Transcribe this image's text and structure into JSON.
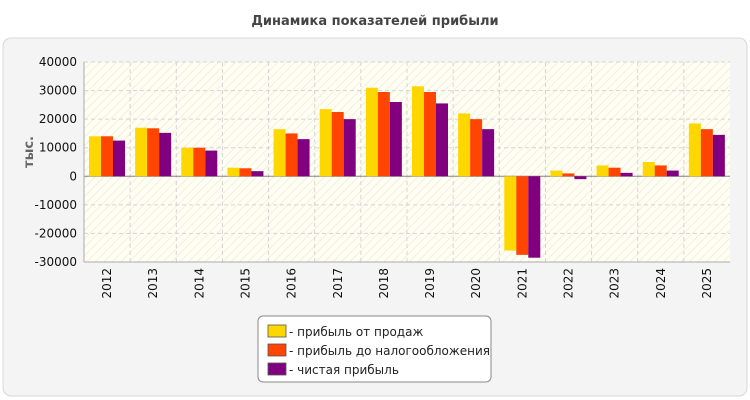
{
  "chart_data": {
    "type": "bar",
    "title": "Динамика показателей прибыли",
    "xlabel": "",
    "ylabel": "тыс.",
    "categories": [
      "2012",
      "2013",
      "2014",
      "2015",
      "2016",
      "2017",
      "2018",
      "2019",
      "2020",
      "2021",
      "2022",
      "2023",
      "2024",
      "2025"
    ],
    "series": [
      {
        "name": "прибыль от продаж",
        "color": "#ffd700",
        "values": [
          14000,
          17000,
          10000,
          3000,
          16500,
          23500,
          31000,
          31500,
          22000,
          -26000,
          2000,
          3800,
          5000,
          18500
        ]
      },
      {
        "name": "прибыль до налогообложения",
        "color": "#ff4500",
        "values": [
          14000,
          16800,
          10000,
          2800,
          15000,
          22500,
          29500,
          29500,
          20000,
          -27500,
          1000,
          3000,
          3800,
          16500
        ]
      },
      {
        "name": "чистая прибыль",
        "color": "#800080",
        "values": [
          12500,
          15200,
          9000,
          1800,
          13000,
          20000,
          26000,
          25500,
          16500,
          -28500,
          -1000,
          1200,
          2000,
          14500
        ]
      }
    ],
    "ylim": [
      -30000,
      40000
    ],
    "yticks": [
      40000,
      30000,
      20000,
      10000,
      0,
      -10000,
      -20000,
      -30000
    ],
    "grid": true,
    "legend_position": "bottom",
    "legend_prefix": "- "
  }
}
